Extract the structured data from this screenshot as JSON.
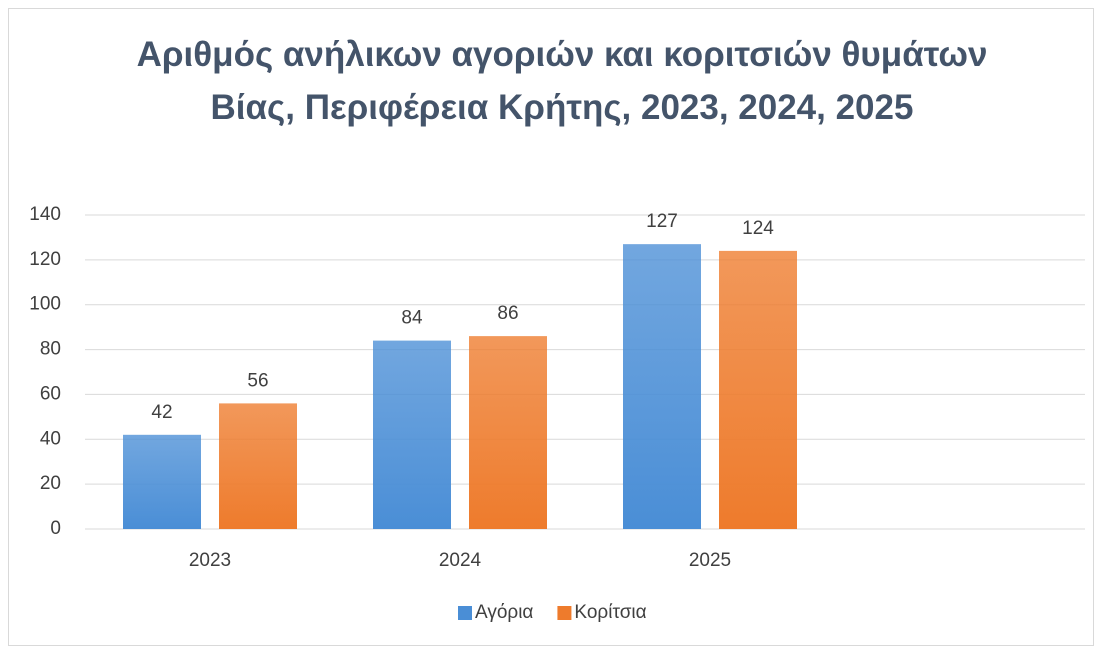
{
  "chart_data": {
    "type": "bar",
    "title": "Αριθμός ανήλικων αγοριών και κοριτσιών θυμάτων Βίας, Περιφέρεια Κρήτης, 2023, 2024, 2025",
    "categories": [
      "2023",
      "2024",
      "2025",
      null
    ],
    "series": [
      {
        "name": "Αγόρια",
        "color": "#4a8ed6",
        "values": [
          42,
          84,
          127,
          null
        ]
      },
      {
        "name": "Κορίτσια",
        "color": "#ee7b2c",
        "values": [
          56,
          86,
          124,
          null
        ]
      }
    ],
    "ylim": [
      0,
      140
    ],
    "yticks": [
      0,
      20,
      40,
      60,
      80,
      100,
      120,
      140
    ],
    "grid": true,
    "legend": "bottom"
  }
}
